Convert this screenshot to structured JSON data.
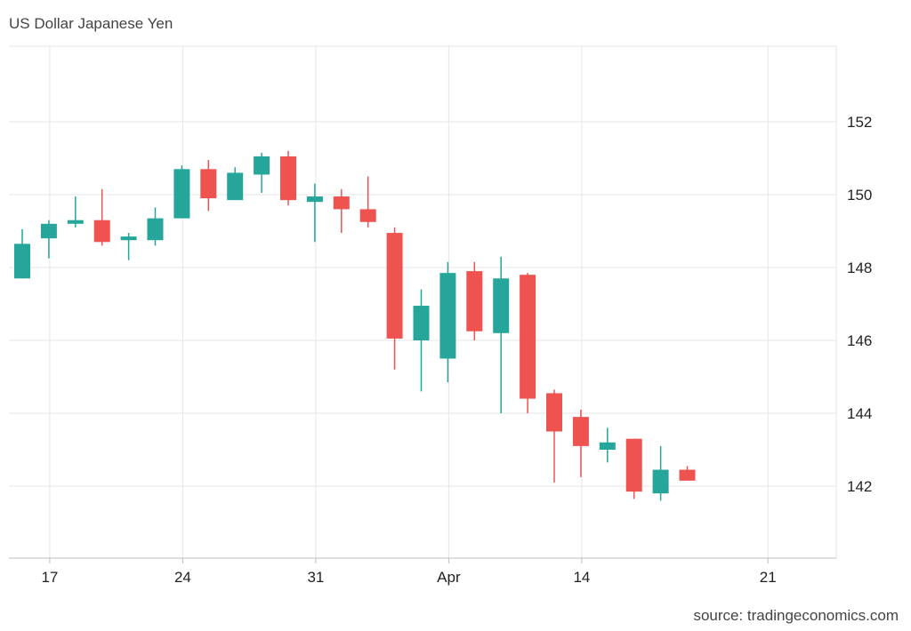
{
  "title": "US Dollar Japanese Yen",
  "source": "source: tradingeconomics.com",
  "colors": {
    "up": "#26a69a",
    "down": "#ef5350",
    "grid": "#e6e6e6",
    "axis": "#bdbdbd"
  },
  "chart_data": {
    "type": "candlestick",
    "title": "US Dollar Japanese Yen",
    "xlabel": "",
    "ylabel": "",
    "ylim": [
      140.2,
      153.8
    ],
    "y_ticks": [
      142,
      144,
      146,
      148,
      150,
      152
    ],
    "x_ticks": [
      {
        "label": "17",
        "index": 1
      },
      {
        "label": "24",
        "index": 6
      },
      {
        "label": "31",
        "index": 11
      },
      {
        "label": "Apr",
        "index": 16
      },
      {
        "label": "14",
        "index": 21
      },
      {
        "label": "21",
        "index": 28
      }
    ],
    "grid": true,
    "candles": [
      {
        "index": 0,
        "open": 147.7,
        "high": 149.05,
        "low": 147.7,
        "close": 148.65
      },
      {
        "index": 1,
        "open": 148.8,
        "high": 149.3,
        "low": 148.25,
        "close": 149.2
      },
      {
        "index": 2,
        "open": 149.2,
        "high": 149.95,
        "low": 149.1,
        "close": 149.3
      },
      {
        "index": 3,
        "open": 149.3,
        "high": 150.15,
        "low": 148.6,
        "close": 148.7
      },
      {
        "index": 4,
        "open": 148.75,
        "high": 148.95,
        "low": 148.2,
        "close": 148.85
      },
      {
        "index": 5,
        "open": 148.75,
        "high": 149.65,
        "low": 148.6,
        "close": 149.35
      },
      {
        "index": 6,
        "open": 149.35,
        "high": 150.8,
        "low": 149.35,
        "close": 150.7
      },
      {
        "index": 7,
        "open": 150.7,
        "high": 150.95,
        "low": 149.55,
        "close": 149.9
      },
      {
        "index": 8,
        "open": 149.85,
        "high": 150.75,
        "low": 149.85,
        "close": 150.6
      },
      {
        "index": 9,
        "open": 150.55,
        "high": 151.15,
        "low": 150.05,
        "close": 151.05
      },
      {
        "index": 10,
        "open": 151.05,
        "high": 151.2,
        "low": 149.7,
        "close": 149.85
      },
      {
        "index": 11,
        "open": 149.8,
        "high": 150.3,
        "low": 148.7,
        "close": 149.95
      },
      {
        "index": 12,
        "open": 149.95,
        "high": 150.15,
        "low": 148.95,
        "close": 149.6
      },
      {
        "index": 13,
        "open": 149.6,
        "high": 150.5,
        "low": 149.1,
        "close": 149.25
      },
      {
        "index": 14,
        "open": 148.95,
        "high": 149.1,
        "low": 145.2,
        "close": 146.05
      },
      {
        "index": 15,
        "open": 146.0,
        "high": 147.4,
        "low": 144.6,
        "close": 146.95
      },
      {
        "index": 16,
        "open": 145.5,
        "high": 148.15,
        "low": 144.85,
        "close": 147.85
      },
      {
        "index": 17,
        "open": 147.9,
        "high": 148.15,
        "low": 146.0,
        "close": 146.25
      },
      {
        "index": 18,
        "open": 146.2,
        "high": 148.3,
        "low": 144.0,
        "close": 147.7
      },
      {
        "index": 19,
        "open": 147.8,
        "high": 147.85,
        "low": 144.0,
        "close": 144.4
      },
      {
        "index": 20,
        "open": 144.55,
        "high": 144.65,
        "low": 142.1,
        "close": 143.5
      },
      {
        "index": 21,
        "open": 143.9,
        "high": 144.1,
        "low": 142.25,
        "close": 143.1
      },
      {
        "index": 22,
        "open": 143.0,
        "high": 143.6,
        "low": 142.65,
        "close": 143.2
      },
      {
        "index": 23,
        "open": 143.3,
        "high": 143.3,
        "low": 141.65,
        "close": 141.85
      },
      {
        "index": 24,
        "open": 141.8,
        "high": 143.1,
        "low": 141.6,
        "close": 142.45
      },
      {
        "index": 25,
        "open": 142.45,
        "high": 142.55,
        "low": 142.15,
        "close": 142.15
      }
    ]
  }
}
